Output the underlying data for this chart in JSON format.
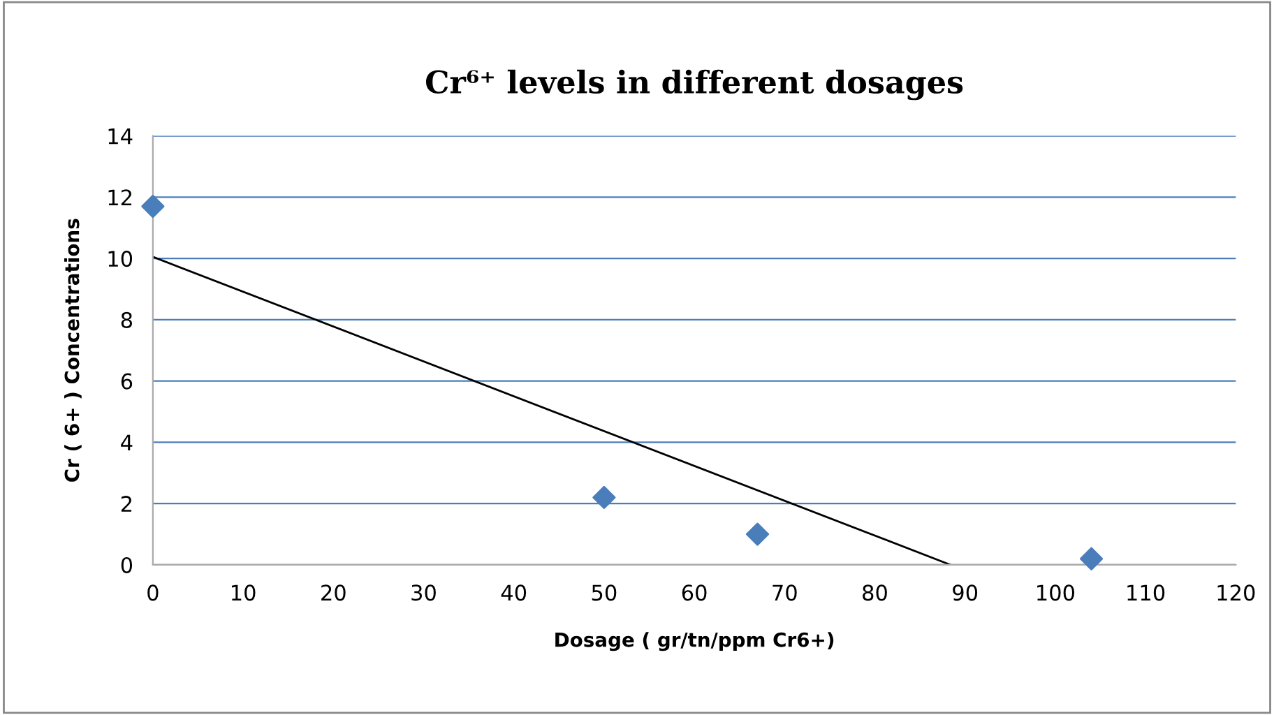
{
  "chart_data": {
    "type": "scatter",
    "title": "Cr⁶⁺ levels in different dosages",
    "xlabel": "Dosage ( gr/tn/ppm Cr6+)",
    "ylabel": "Cr ( 6+ ) Concentrations",
    "series": [
      {
        "color": "#4a7ebb",
        "x": [
          0,
          50,
          67,
          104
        ],
        "values": [
          11.7,
          2.2,
          1.0,
          0.2
        ],
        "marker": "diamond"
      },
      {
        "type": "line",
        "color": "#000000",
        "x": [
          0,
          88.4
        ],
        "values": [
          10.05,
          0
        ],
        "marker": "none",
        "line_style": "solid"
      }
    ],
    "xlim": [
      0,
      120
    ],
    "xticks": [
      0,
      10,
      20,
      30,
      40,
      50,
      60,
      70,
      80,
      90,
      100,
      110,
      120
    ],
    "ylim": [
      0,
      14
    ],
    "yticks": [
      0,
      2,
      4,
      6,
      8,
      10,
      12,
      14
    ],
    "grid": "y",
    "legend": false
  }
}
